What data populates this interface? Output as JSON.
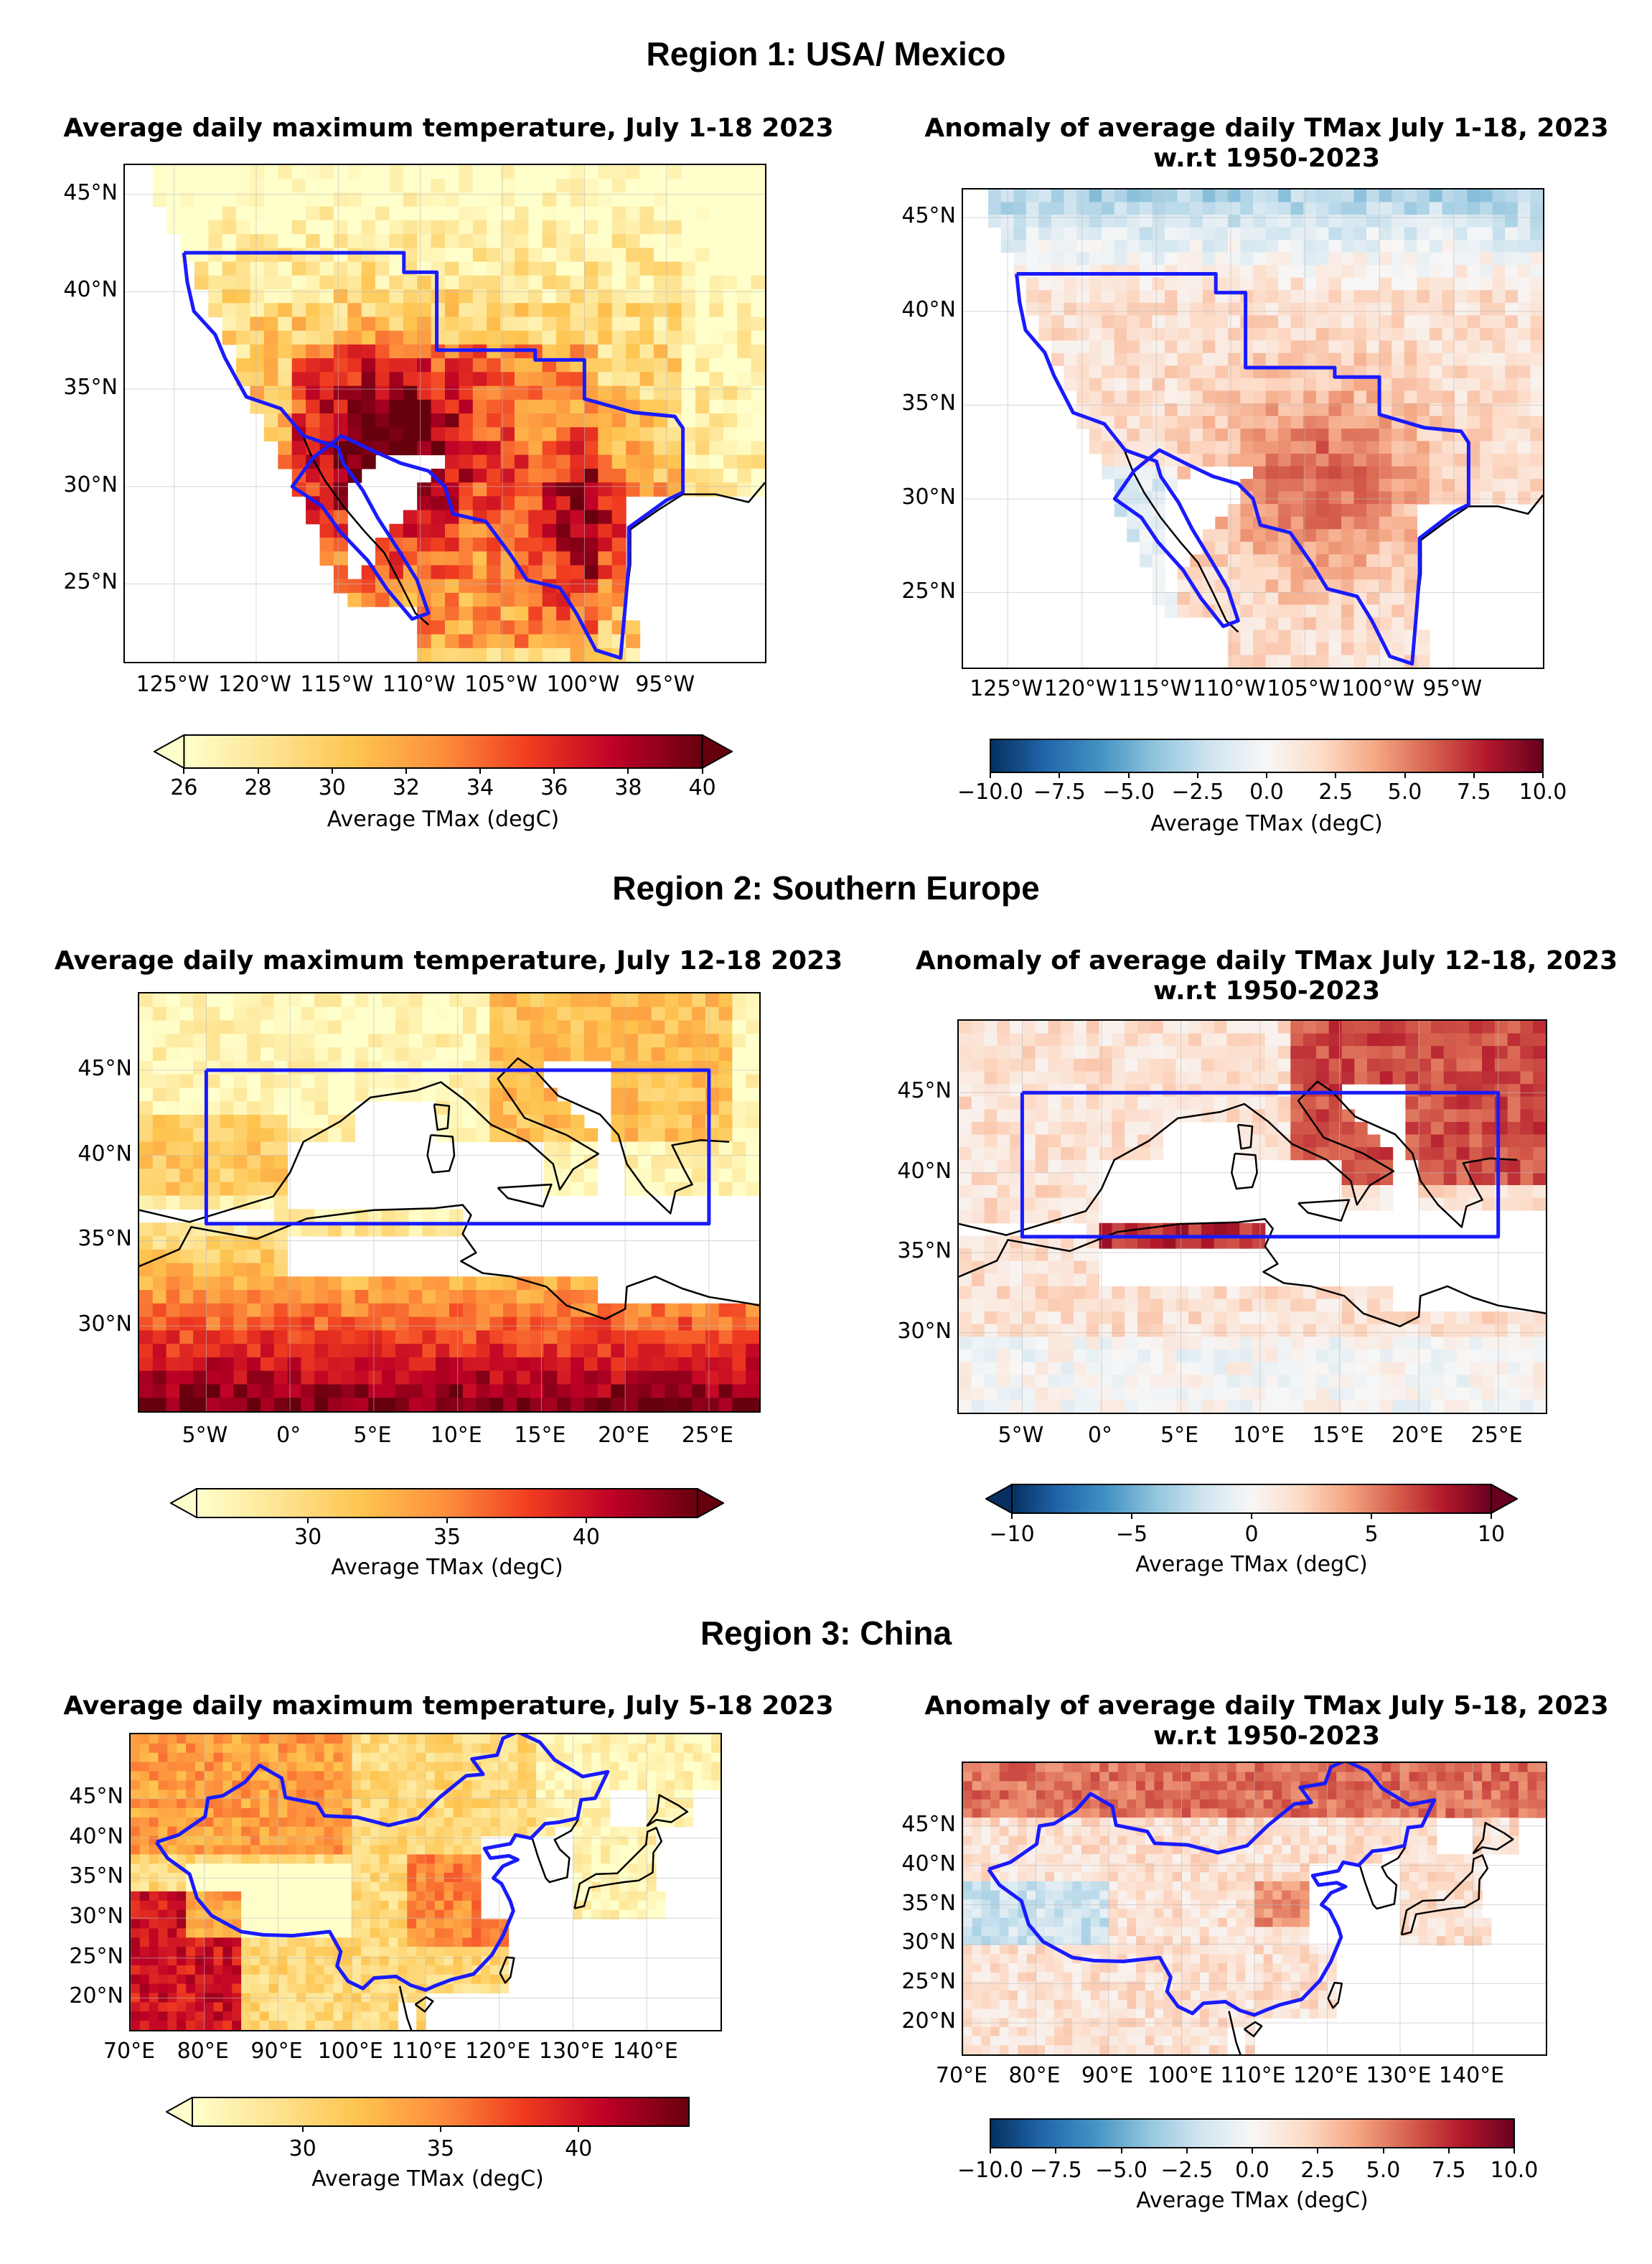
{
  "region_titles": [
    "Region 1: USA/ Mexico",
    "Region 2: Southern Europe",
    "Region 3: China"
  ],
  "colorbars": {
    "abs_label": "Average TMax (degC)",
    "anom_label": "Average TMax (degC)",
    "abs_colors": [
      "#ffffcc",
      "#fee391",
      "#fec44f",
      "#fd8d3c",
      "#f03b20",
      "#bd0026",
      "#67000d"
    ],
    "anom_colors": [
      "#053061",
      "#2166ac",
      "#4393c3",
      "#92c5de",
      "#d1e5f0",
      "#f7f7f7",
      "#fddbc7",
      "#f4a582",
      "#d6604d",
      "#b2182b",
      "#67001f"
    ]
  },
  "chart_data": [
    {
      "type": "heatmap",
      "title": "Average daily maximum temperature, July 1-18 2023",
      "region": "Region 1: USA/ Mexico",
      "x_ticks": [
        "125°W",
        "120°W",
        "115°W",
        "110°W",
        "105°W",
        "100°W",
        "95°W"
      ],
      "y_ticks": [
        "45°N",
        "40°N",
        "35°N",
        "30°N",
        "25°N"
      ],
      "xlim": [
        -128,
        -89
      ],
      "ylim": [
        21,
        46.5
      ],
      "colorbar": {
        "min": 26,
        "max": 40,
        "ticks": [
          "26",
          "28",
          "30",
          "32",
          "34",
          "36",
          "38",
          "40"
        ],
        "extend": "both",
        "label": "Average TMax (degC)"
      }
    },
    {
      "type": "heatmap",
      "title": "Anomaly of average daily TMax July 1-18, 2023",
      "subtitle": "w.r.t 1950-2023",
      "region": "Region 1: USA/ Mexico",
      "x_ticks": [
        "125°W",
        "120°W",
        "115°W",
        "110°W",
        "105°W",
        "100°W",
        "95°W"
      ],
      "y_ticks": [
        "45°N",
        "40°N",
        "35°N",
        "30°N",
        "25°N"
      ],
      "xlim": [
        -128,
        -89
      ],
      "ylim": [
        21,
        46.5
      ],
      "colorbar": {
        "min": -10,
        "max": 10,
        "ticks": [
          "−10.0",
          "−7.5",
          "−5.0",
          "−2.5",
          "0.0",
          "2.5",
          "5.0",
          "7.5",
          "10.0"
        ],
        "extend": "neither",
        "label": "Average TMax (degC)"
      }
    },
    {
      "type": "heatmap",
      "title": "Average daily maximum temperature, July 12-18 2023",
      "region": "Region 2: Southern Europe",
      "x_ticks": [
        "5°W",
        "0°",
        "5°E",
        "10°E",
        "15°E",
        "20°E",
        "25°E"
      ],
      "y_ticks": [
        "45°N",
        "40°N",
        "35°N",
        "30°N"
      ],
      "xlim": [
        -9,
        28
      ],
      "ylim": [
        25,
        49.5
      ],
      "colorbar": {
        "min": 26,
        "max": 44,
        "ticks": [
          "30",
          "35",
          "40"
        ],
        "extend": "both",
        "label": "Average TMax (degC)"
      }
    },
    {
      "type": "heatmap",
      "title": "Anomaly of average daily TMax July 12-18, 2023",
      "subtitle": "w.r.t 1950-2023",
      "region": "Region 2: Southern Europe",
      "x_ticks": [
        "5°W",
        "0°",
        "5°E",
        "10°E",
        "15°E",
        "20°E",
        "25°E"
      ],
      "y_ticks": [
        "45°N",
        "40°N",
        "35°N",
        "30°N"
      ],
      "xlim": [
        -9,
        28
      ],
      "ylim": [
        25,
        49.5
      ],
      "colorbar": {
        "min": -10,
        "max": 10,
        "ticks": [
          "−10",
          "−5",
          "0",
          "5",
          "10"
        ],
        "extend": "both",
        "label": "Average TMax (degC)"
      }
    },
    {
      "type": "heatmap",
      "title": "Average daily maximum temperature, July 5-18 2023",
      "region": "Region 3: China",
      "x_ticks": [
        "70°E",
        "80°E",
        "90°E",
        "100°E",
        "110°E",
        "120°E",
        "130°E",
        "140°E"
      ],
      "y_ticks": [
        "45°N",
        "40°N",
        "35°N",
        "30°N",
        "25°N",
        "20°N"
      ],
      "xlim": [
        70,
        150
      ],
      "ylim": [
        16,
        53
      ],
      "colorbar": {
        "min": 26,
        "max": 44,
        "ticks": [
          "30",
          "35",
          "40"
        ],
        "extend": "min",
        "label": "Average TMax (degC)"
      }
    },
    {
      "type": "heatmap",
      "title": "Anomaly of average daily TMax July 5-18, 2023",
      "subtitle": "w.r.t 1950-2023",
      "region": "Region 3: China",
      "x_ticks": [
        "70°E",
        "80°E",
        "90°E",
        "100°E",
        "110°E",
        "120°E",
        "130°E",
        "140°E"
      ],
      "y_ticks": [
        "45°N",
        "40°N",
        "35°N",
        "30°N",
        "25°N",
        "20°N"
      ],
      "xlim": [
        70,
        150
      ],
      "ylim": [
        16,
        53
      ],
      "colorbar": {
        "min": -10,
        "max": 10,
        "ticks": [
          "−10.0",
          "−7.5",
          "−5.0",
          "−2.5",
          "0.0",
          "2.5",
          "5.0",
          "7.5",
          "10.0"
        ],
        "extend": "neither",
        "label": "Average TMax (degC)"
      }
    }
  ]
}
